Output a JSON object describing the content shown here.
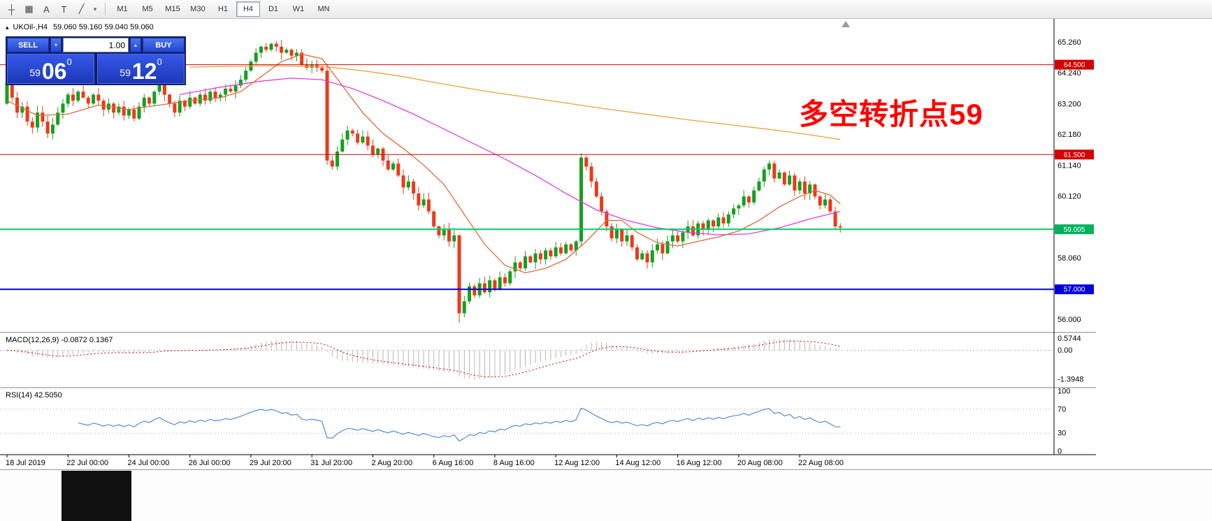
{
  "colors": {
    "bull": "#14a01f",
    "bear": "#ea3a1c",
    "axis": "#000000",
    "separator": "#808080",
    "macd_hist": "#b6b6b6",
    "macd_signal": "#cc0000",
    "rsi_line": "#4184d2",
    "scroll_marker": "#9a9a9a"
  },
  "toolbar": {
    "icons": [
      {
        "name": "crosshair-icon",
        "glyph": "┼"
      },
      {
        "name": "grid-icon",
        "glyph": "▦"
      },
      {
        "name": "text-label-icon",
        "glyph": "A"
      },
      {
        "name": "text-box-icon",
        "glyph": "T"
      },
      {
        "name": "trendline-icon",
        "glyph": "╱"
      },
      {
        "name": "dropdown-arrow-icon",
        "glyph": "▾"
      }
    ],
    "timeframes": [
      "M1",
      "M5",
      "M15",
      "M30",
      "H1",
      "H4",
      "D1",
      "W1",
      "MN"
    ],
    "active_timeframe": "H4"
  },
  "chart": {
    "collapse_arrow": "▴",
    "symbol_period": "UKOil-,H4",
    "ohlc": "59.060 59.160 59.040 59.060",
    "annotation": "多空转折点59"
  },
  "trade_panel": {
    "sell_label": "SELL",
    "buy_label": "BUY",
    "volume": "1.00",
    "dropdown_glyph": "▾",
    "spinner_glyph": "▴",
    "sell_price": {
      "whole": "59",
      "pips": "06",
      "pipette": "0"
    },
    "buy_price": {
      "whole": "59",
      "pips": "12",
      "pipette": "0"
    }
  },
  "chart_data": {
    "type": "candlestick",
    "symbol": "UKOil-",
    "period": "H4",
    "ylim": [
      55.63,
      65.96
    ],
    "first_open": 63.2,
    "closes": [
      63.9,
      63.4,
      62.9,
      63.1,
      62.6,
      62.4,
      62.9,
      62.6,
      62.2,
      62.5,
      62.9,
      63.2,
      63.5,
      63.3,
      63.6,
      63.4,
      63.2,
      63.5,
      63.3,
      63.0,
      63.2,
      62.9,
      63.1,
      62.8,
      63.0,
      62.7,
      63.1,
      63.4,
      63.2,
      63.6,
      63.9,
      63.5,
      63.2,
      62.9,
      63.3,
      63.1,
      63.4,
      63.2,
      63.5,
      63.3,
      63.6,
      63.4,
      63.5,
      63.7,
      63.6,
      63.8,
      64.0,
      64.3,
      64.6,
      64.9,
      65.1,
      65.0,
      65.2,
      65.1,
      64.9,
      65.0,
      64.8,
      64.9,
      64.5,
      64.4,
      64.5,
      64.4,
      64.3,
      61.3,
      61.1,
      61.6,
      62.0,
      62.3,
      62.2,
      61.9,
      62.1,
      61.8,
      61.5,
      61.7,
      61.3,
      61.0,
      61.2,
      60.8,
      60.4,
      60.6,
      60.2,
      59.8,
      60.0,
      59.6,
      59.1,
      58.8,
      59.0,
      58.6,
      58.8,
      56.2,
      56.6,
      57.1,
      56.8,
      57.2,
      56.9,
      57.3,
      57.0,
      57.4,
      57.2,
      57.6,
      57.9,
      57.7,
      58.1,
      57.9,
      58.2,
      58.0,
      58.3,
      58.1,
      58.4,
      58.2,
      58.5,
      58.3,
      58.6,
      61.4,
      61.1,
      60.6,
      60.1,
      59.6,
      59.1,
      58.7,
      59.0,
      58.6,
      58.8,
      58.4,
      58.0,
      58.2,
      57.9,
      58.3,
      58.5,
      58.2,
      58.6,
      58.8,
      58.6,
      58.9,
      59.1,
      58.8,
      59.2,
      59.0,
      59.3,
      59.1,
      59.4,
      59.2,
      59.5,
      59.7,
      59.8,
      60.1,
      59.9,
      60.3,
      60.6,
      61.0,
      61.2,
      60.7,
      60.9,
      60.5,
      60.8,
      60.3,
      60.6,
      60.2,
      60.5,
      60.1,
      59.8,
      60.0,
      59.6,
      59.1,
      59.06
    ],
    "wick_overrides": {
      "54": {
        "high": 65.33
      },
      "89": {
        "low": 55.88
      },
      "113": {
        "high": 61.55
      }
    },
    "moving_averages": [
      {
        "name": "ma-slow",
        "color": "#e8a33d",
        "points": [
          [
            36,
            64.42
          ],
          [
            52,
            64.46
          ],
          [
            62,
            64.44
          ],
          [
            70,
            64.3
          ],
          [
            78,
            64.1
          ],
          [
            86,
            63.85
          ],
          [
            94,
            63.62
          ],
          [
            102,
            63.42
          ],
          [
            110,
            63.22
          ],
          [
            118,
            63.02
          ],
          [
            126,
            62.84
          ],
          [
            134,
            62.66
          ],
          [
            142,
            62.5
          ],
          [
            150,
            62.34
          ],
          [
            158,
            62.16
          ],
          [
            164,
            62.0
          ]
        ]
      },
      {
        "name": "ma-medium",
        "color": "#e23de2",
        "points": [
          [
            34,
            63.5
          ],
          [
            42,
            63.75
          ],
          [
            50,
            63.95
          ],
          [
            56,
            64.05
          ],
          [
            62,
            64.0
          ],
          [
            68,
            63.7
          ],
          [
            74,
            63.3
          ],
          [
            80,
            62.85
          ],
          [
            86,
            62.35
          ],
          [
            92,
            61.85
          ],
          [
            98,
            61.35
          ],
          [
            104,
            60.8
          ],
          [
            110,
            60.2
          ],
          [
            116,
            59.65
          ],
          [
            122,
            59.3
          ],
          [
            128,
            59.05
          ],
          [
            134,
            58.9
          ],
          [
            140,
            58.82
          ],
          [
            146,
            58.85
          ],
          [
            152,
            59.05
          ],
          [
            158,
            59.35
          ],
          [
            164,
            59.6
          ]
        ]
      },
      {
        "name": "ma-fast",
        "color": "#dd6a3a",
        "points": [
          [
            0,
            63.3
          ],
          [
            6,
            62.8
          ],
          [
            12,
            62.85
          ],
          [
            18,
            63.15
          ],
          [
            24,
            63.0
          ],
          [
            30,
            63.15
          ],
          [
            36,
            63.3
          ],
          [
            42,
            63.4
          ],
          [
            46,
            63.6
          ],
          [
            50,
            64.1
          ],
          [
            54,
            64.6
          ],
          [
            58,
            64.85
          ],
          [
            62,
            64.7
          ],
          [
            66,
            63.8
          ],
          [
            70,
            62.9
          ],
          [
            74,
            62.2
          ],
          [
            78,
            61.7
          ],
          [
            82,
            61.15
          ],
          [
            86,
            60.5
          ],
          [
            90,
            59.5
          ],
          [
            94,
            58.5
          ],
          [
            98,
            57.8
          ],
          [
            102,
            57.55
          ],
          [
            106,
            57.7
          ],
          [
            110,
            58.0
          ],
          [
            114,
            58.6
          ],
          [
            118,
            59.3
          ],
          [
            121,
            59.3
          ],
          [
            124,
            58.9
          ],
          [
            128,
            58.55
          ],
          [
            132,
            58.45
          ],
          [
            136,
            58.6
          ],
          [
            140,
            58.75
          ],
          [
            144,
            58.95
          ],
          [
            148,
            59.3
          ],
          [
            152,
            59.75
          ],
          [
            156,
            60.1
          ],
          [
            159,
            60.3
          ],
          [
            162,
            60.15
          ],
          [
            164,
            59.85
          ]
        ]
      }
    ],
    "horizontal_lines": [
      {
        "price": 64.5,
        "label": "64.500",
        "color": "#d40000",
        "width": 1
      },
      {
        "price": 61.5,
        "label": "61.500",
        "color": "#d40000",
        "width": 1
      },
      {
        "price": 59.005,
        "label": "59.005",
        "color": "#00cc66",
        "tag_color": "#00b25c",
        "width": 2
      },
      {
        "price": 57.0,
        "label": "57.000",
        "color": "#0000d8",
        "width": 2
      }
    ],
    "price_scale_labels": [
      {
        "v": 65.26,
        "t": "65.260"
      },
      {
        "v": 64.24,
        "t": "64.240"
      },
      {
        "v": 63.2,
        "t": "63.200"
      },
      {
        "v": 62.18,
        "t": "62.180"
      },
      {
        "v": 61.14,
        "t": "61.140"
      },
      {
        "v": 60.12,
        "t": "60.120"
      },
      {
        "v": 58.06,
        "t": "58.060"
      },
      {
        "v": 56.0,
        "t": "56.000"
      }
    ],
    "x_labels": [
      {
        "label": "18 Jul 2019",
        "index": 0
      },
      {
        "label": "22 Jul 00:00",
        "index": 12
      },
      {
        "label": "24 Jul 00:00",
        "index": 24
      },
      {
        "label": "26 Jul 00:00",
        "index": 36
      },
      {
        "label": "29 Jul 20:00",
        "index": 48
      },
      {
        "label": "31 Jul 20:00",
        "index": 60
      },
      {
        "label": "2 Aug 20:00",
        "index": 72
      },
      {
        "label": "6 Aug 16:00",
        "index": 84
      },
      {
        "label": "8 Aug 16:00",
        "index": 96
      },
      {
        "label": "12 Aug 12:00",
        "index": 108
      },
      {
        "label": "14 Aug 12:00",
        "index": 120
      },
      {
        "label": "16 Aug 12:00",
        "index": 132
      },
      {
        "label": "20 Aug 08:00",
        "index": 144
      },
      {
        "label": "22 Aug 08:00",
        "index": 156
      }
    ],
    "macd": {
      "title": "MACD(12,26,9) -0.0872 0.1367",
      "params": [
        12,
        26,
        9
      ],
      "ylim": [
        -1.7,
        0.8
      ],
      "scale": [
        {
          "v": 0.5744,
          "t": "0.5744"
        },
        {
          "v": 0,
          "t": "0.00"
        },
        {
          "v": -1.3948,
          "t": "-1.3948"
        }
      ]
    },
    "rsi": {
      "title": "RSI(14) 42.5050",
      "period": 14,
      "levels": [
        70,
        30
      ],
      "scale": [
        {
          "v": 100,
          "t": "100"
        },
        {
          "v": 70,
          "t": "70"
        },
        {
          "v": 30,
          "t": "30"
        },
        {
          "v": 0,
          "t": "0"
        }
      ]
    }
  }
}
